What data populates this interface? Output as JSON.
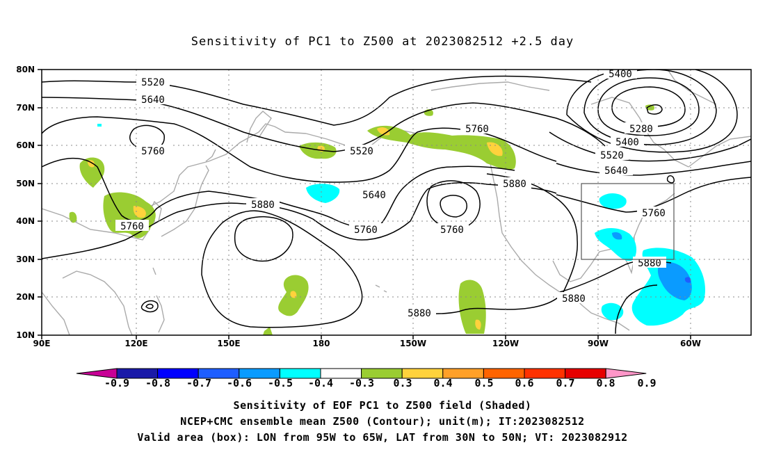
{
  "title": "Sensitivity of PC1 to Z500 at 2023082512 +2.5 day",
  "lat_labels": [
    "80N",
    "70N",
    "60N",
    "50N",
    "40N",
    "30N",
    "20N",
    "10N"
  ],
  "lon_labels": [
    "90E",
    "120E",
    "150E",
    "180",
    "150W",
    "120W",
    "90W",
    "60W"
  ],
  "contour_labels": [
    "5400",
    "5520",
    "5640",
    "5760",
    "5280",
    "5400",
    "5520",
    "5640",
    "5760",
    "5880",
    "5520",
    "5760",
    "5640",
    "5880",
    "5760",
    "5760",
    "5760",
    "5880",
    "5880",
    "5880"
  ],
  "colorbar": {
    "labels": [
      "-0.9",
      "-0.8",
      "-0.7",
      "-0.6",
      "-0.5",
      "-0.4",
      "-0.3",
      "0.3",
      "0.4",
      "0.5",
      "0.6",
      "0.7",
      "0.8",
      "0.9"
    ],
    "colors": [
      "#1a1aa8",
      "#0000ff",
      "#1e5eff",
      "#0a9bff",
      "#00ffff",
      "#ffffff",
      "#9acd32",
      "#ffd23c",
      "#ffa028",
      "#ff6400",
      "#ff3200",
      "#e60000"
    ],
    "left_arrow_color": "#c80096",
    "right_arrow_color": "#ff96c8"
  },
  "valid_box": {
    "lon_west": "95W",
    "lon_east": "65W",
    "lat_south": "30N",
    "lat_north": "50N"
  },
  "captions": {
    "line1": "Sensitivity of EOF PC1 to Z500 field (Shaded)",
    "line2": "NCEP+CMC ensemble mean Z500 (Contour); unit(m); IT:2023082512",
    "line3": "Valid area (box): LON from 95W to 65W, LAT from 30N to 50N; VT: 2023082912"
  }
}
